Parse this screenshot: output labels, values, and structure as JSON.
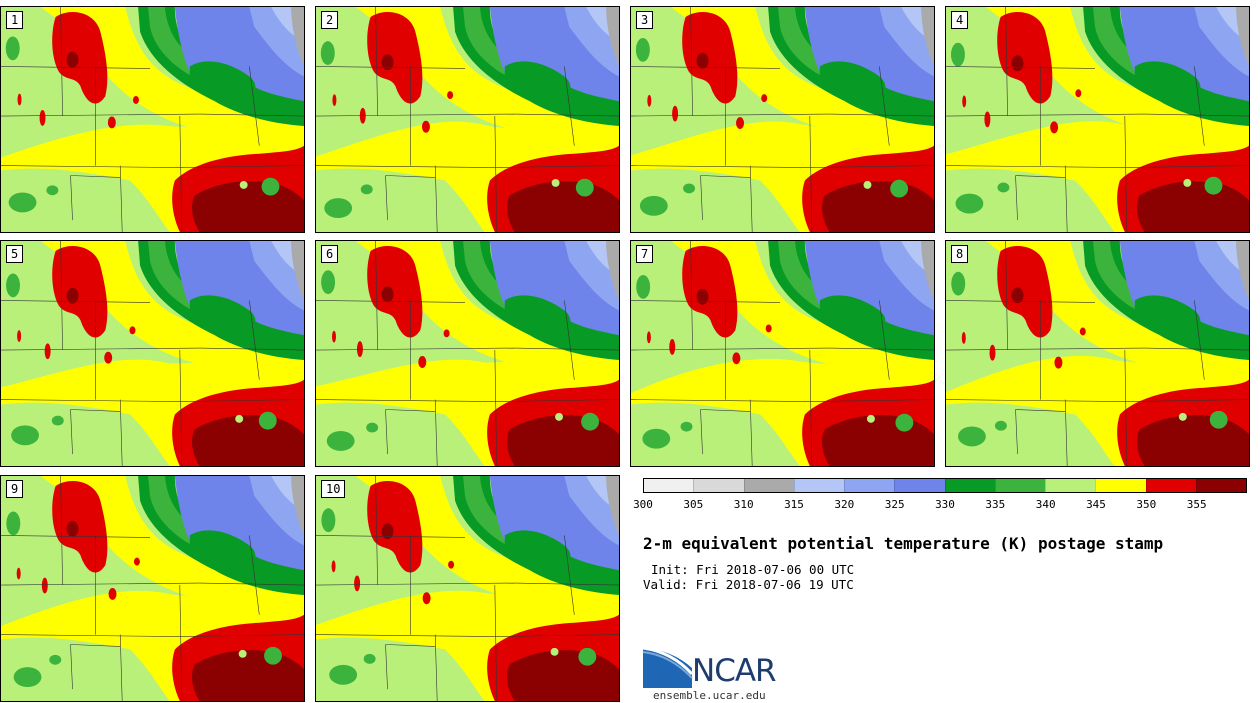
{
  "title": "2-m equivalent potential temperature (K) postage stamp",
  "init": "Init: Fri 2018-07-06 00 UTC",
  "valid": "Valid: Fri 2018-07-06 19 UTC",
  "logo": {
    "text": "NCAR",
    "url_text": "ensemble.ucar.edu"
  },
  "panels": [
    {
      "label": "1"
    },
    {
      "label": "2"
    },
    {
      "label": "3"
    },
    {
      "label": "4"
    },
    {
      "label": "5"
    },
    {
      "label": "6"
    },
    {
      "label": "7"
    },
    {
      "label": "8"
    },
    {
      "label": "9"
    },
    {
      "label": "10"
    }
  ],
  "colorbar": {
    "ticks": [
      "300",
      "305",
      "310",
      "315",
      "320",
      "325",
      "330",
      "335",
      "340",
      "345",
      "350",
      "355"
    ],
    "colors": [
      "#f0f0f0",
      "#d9d9d9",
      "#aaaaaa",
      "#b4c6f5",
      "#8ea6f2",
      "#6f84ea",
      "#079b25",
      "#3cb33c",
      "#b8f07a",
      "#ffff00",
      "#e00000",
      "#8b0000"
    ]
  },
  "map_colors": {
    "gray": "#aaaaaa",
    "lightblue": "#b4c6f5",
    "blue": "#8ea6f2",
    "blue2": "#6f84ea",
    "darkgreen": "#079b25",
    "green": "#3cb33c",
    "lightgreen": "#b8f07a",
    "yellow": "#ffff00",
    "red": "#e00000",
    "darkred": "#8b0000"
  }
}
